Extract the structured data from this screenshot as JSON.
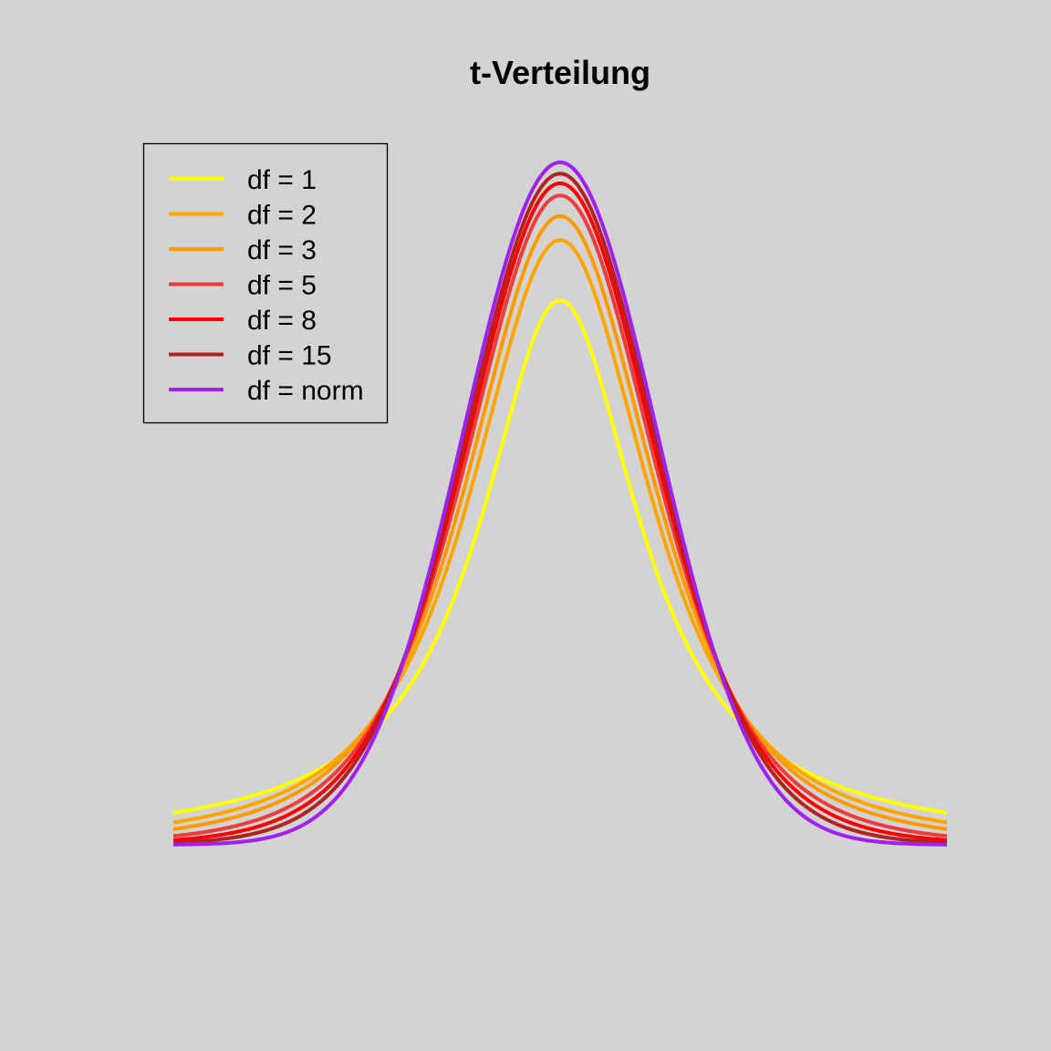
{
  "chart_data": {
    "type": "line",
    "title": "t-Verteilung",
    "xlabel": "",
    "ylabel": "",
    "xlim": [
      -4,
      4
    ],
    "ylim": [
      0,
      0.4
    ],
    "axes_shown": false,
    "grid": false,
    "legend_position": "top-left",
    "background": "#d3d3d3",
    "series": [
      {
        "name": "df = 1",
        "df": 1,
        "color": "#ffff00"
      },
      {
        "name": "df = 2",
        "df": 2,
        "color": "#ffa500"
      },
      {
        "name": "df = 3",
        "df": 3,
        "color": "#ff9900"
      },
      {
        "name": "df = 5",
        "df": 5,
        "color": "#ee3b3b"
      },
      {
        "name": "df = 8",
        "df": 8,
        "color": "#ff0000"
      },
      {
        "name": "df = 15",
        "df": 15,
        "color": "#b22222"
      },
      {
        "name": "df = norm",
        "df": null,
        "color": "#a020f0"
      }
    ]
  }
}
